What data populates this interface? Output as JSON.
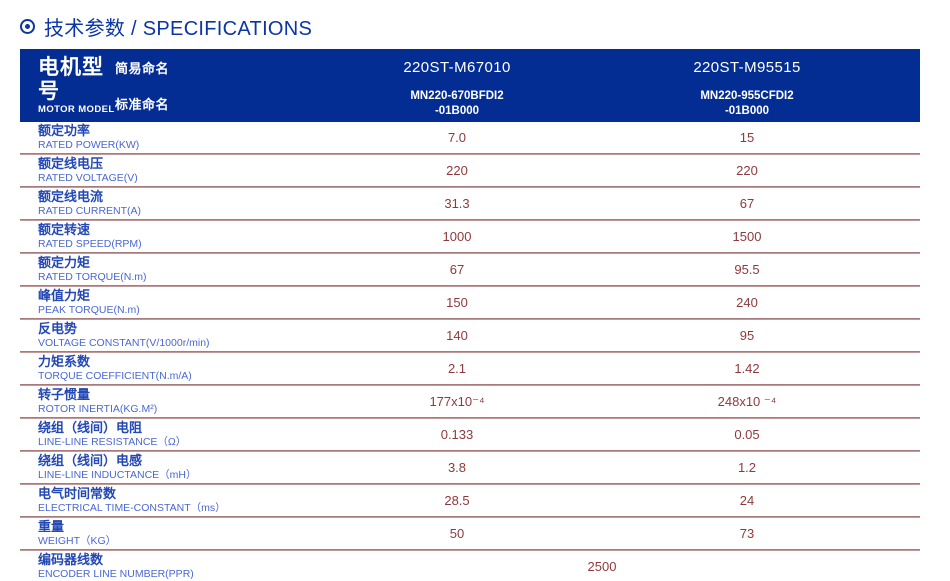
{
  "title": {
    "icon": "circled-dot",
    "text": "技术参数 / SPECIFICATIONS"
  },
  "colors": {
    "title_blue": "#0b35a6",
    "header_bg": "#042d94",
    "header_text": "#ffffff",
    "label_cn_blue": "#2448b4",
    "label_en_blue": "#4a67d4",
    "value_maroon": "#8e3a3c",
    "divider_dark": "#9a6c6c",
    "divider_light": "#cfa8a8"
  },
  "table": {
    "header": {
      "motor_model_cn": "电机型号",
      "motor_model_en": "MOTOR MODEL",
      "simple_name_label": "简易命名",
      "standard_name_label": "标准命名",
      "columns": [
        {
          "simple_name": "220ST-M67010",
          "standard_name_line1": "MN220-670BFDI2",
          "standard_name_line2": "-01B000"
        },
        {
          "simple_name": "220ST-M95515",
          "standard_name_line1": "MN220-955CFDI2",
          "standard_name_line2": "-01B000"
        }
      ]
    },
    "rows": [
      {
        "cn": "额定功率",
        "en": "RATED POWER(KW)",
        "v1": "7.0",
        "v2": "15"
      },
      {
        "cn": "额定线电压",
        "en": "RATED VOLTAGE(V)",
        "v1": "220",
        "v2": "220"
      },
      {
        "cn": "额定线电流",
        "en": "RATED CURRENT(A)",
        "v1": "31.3",
        "v2": "67"
      },
      {
        "cn": "额定转速",
        "en": "RATED SPEED(RPM)",
        "v1": "1000",
        "v2": "1500"
      },
      {
        "cn": "额定力矩",
        "en": "RATED TORQUE(N.m)",
        "v1": "67",
        "v2": "95.5"
      },
      {
        "cn": "峰值力矩",
        "en": "PEAK TORQUE(N.m)",
        "v1": "150",
        "v2": "240"
      },
      {
        "cn": "反电势",
        "en": "VOLTAGE CONSTANT(V/1000r/min)",
        "v1": "140",
        "v2": "95"
      },
      {
        "cn": "力矩系数",
        "en": "TORQUE COEFFICIENT(N.m/A)",
        "v1": "2.1",
        "v2": "1.42"
      },
      {
        "cn": "转子惯量",
        "en": "ROTOR INERTIA(KG.M²)",
        "v1": "177x10⁻⁴",
        "v2": "248x10 ⁻⁴"
      },
      {
        "cn": "绕组（线间）电阻",
        "en": "LINE-LINE RESISTANCE（Ω）",
        "v1": "0.133",
        "v2": "0.05"
      },
      {
        "cn": "绕组（线间）电感",
        "en": "LINE-LINE INDUCTANCE（mH）",
        "v1": "3.8",
        "v2": "1.2"
      },
      {
        "cn": "电气时间常数",
        "en": "ELECTRICAL TIME-CONSTANT（ms）",
        "v1": "28.5",
        "v2": "24"
      },
      {
        "cn": "重量",
        "en": "WEIGHT（KG）",
        "v1": "50",
        "v2": "73"
      },
      {
        "cn": "编码器线数",
        "en": "ENCODER LINE NUMBER(PPR)",
        "merged": "2500"
      }
    ]
  }
}
